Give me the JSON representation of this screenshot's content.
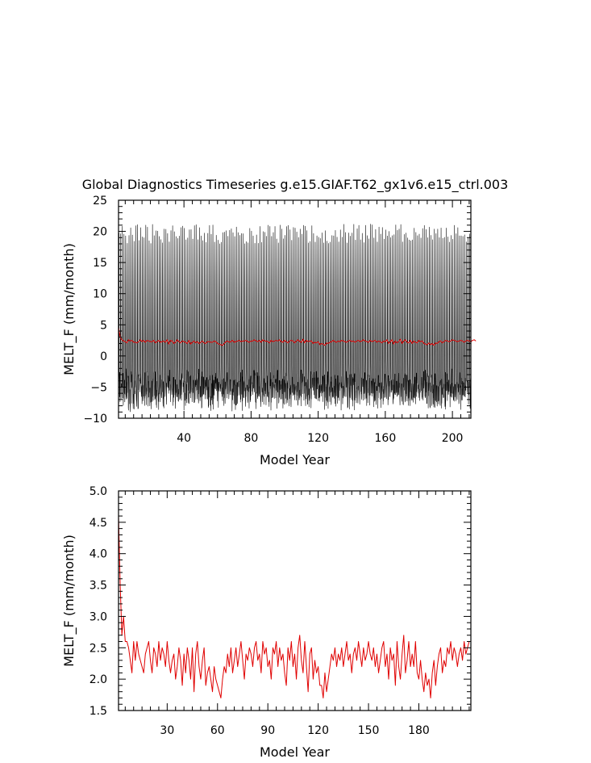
{
  "title": "Global Diagnostics Timeseries g.e15.GIAF.T62_gx1v6.e15_ctrl.003",
  "colors": {
    "monthly": "#000000",
    "annual": "#e00000",
    "axes": "#000000",
    "background": "#ffffff"
  },
  "chart_data": [
    {
      "type": "line",
      "xlabel": "Model Year",
      "ylabel": "MELT_F (mm/month)",
      "xlim": [
        1,
        211
      ],
      "ylim": [
        -10,
        25
      ],
      "x_ticks": [
        40,
        80,
        120,
        160,
        200
      ],
      "y_ticks": [
        -10,
        -5,
        0,
        5,
        10,
        15,
        20,
        25
      ],
      "y_tick_labels": [
        "−10",
        "−5",
        "0",
        "5",
        "10",
        "15",
        "20",
        "25"
      ],
      "x_tick_labels": [
        "40",
        "80",
        "120",
        "160",
        "200"
      ],
      "grid": false,
      "series": [
        {
          "kind": "monthly",
          "color": "#000000",
          "x_start": 1,
          "x_end": 211,
          "points_per_year": 12,
          "seasonal_max_approx": [
            18,
            22
          ],
          "seasonal_min_approx": [
            -7,
            -4
          ],
          "annual_mean_approx": 2.3
        },
        {
          "kind": "annual mean",
          "color": "#e00000",
          "x_start": 1,
          "values": [
            4.6,
            3.0,
            2.6,
            2.4,
            2.3,
            2.1,
            2.6,
            2.4,
            2.5,
            2.2,
            2.2,
            2.1,
            2.3,
            2.6,
            2.3,
            2.5,
            2.2,
            2.5,
            2.4,
            2.3,
            2.3,
            2.5,
            2.1,
            2.3,
            2.5,
            2.2,
            2.3,
            2.4,
            2.2,
            2.6,
            1.9,
            2.5,
            2.4,
            2.0,
            2.2,
            2.6,
            2.3,
            2.1,
            2.4,
            2.3,
            2.2,
            2.0,
            2.5,
            1.9,
            2.2,
            2.4,
            2.1,
            2.3,
            2.0,
            2.2,
            2.4,
            2.1,
            2.0,
            2.3,
            2.3,
            2.2,
            2.2,
            2.4,
            2.3,
            2.0,
            1.9,
            1.8,
            1.7,
            2.0,
            2.3,
            2.4,
            2.2,
            2.3,
            2.5,
            2.2,
            2.3,
            2.4,
            2.5,
            2.3,
            2.4,
            2.4,
            2.5,
            2.3,
            2.2,
            2.4,
            2.4,
            2.6,
            2.4,
            2.3,
            2.5,
            2.2,
            2.6,
            2.4,
            2.4,
            2.3,
            2.1,
            2.5,
            2.3,
            2.4,
            2.5,
            2.4,
            2.6,
            2.3,
            2.2,
            2.5,
            2.3,
            2.1,
            2.4,
            2.5,
            2.4,
            2.1,
            2.4,
            2.6,
            2.3,
            2.2,
            2.7,
            2.1,
            2.5,
            2.3,
            2.4,
            2.4,
            2.0,
            2.2,
            2.1,
            2.3,
            1.8,
            2.0,
            1.9,
            1.7,
            2.1,
            2.0,
            2.2,
            2.3,
            2.5,
            2.3,
            2.2,
            2.4,
            2.3,
            2.5,
            2.4,
            2.3,
            2.2,
            2.4,
            2.5,
            2.3,
            2.4,
            2.2,
            2.4,
            2.5,
            2.3,
            2.4,
            2.6,
            2.4,
            2.3,
            2.2,
            2.5,
            2.3,
            2.4,
            2.5,
            2.2,
            2.4,
            2.3,
            2.1,
            2.4,
            2.3,
            2.6,
            2.0,
            2.3,
            2.6,
            1.9,
            2.4,
            2.1,
            2.3,
            2.7,
            2.0,
            2.4,
            2.6,
            2.2,
            2.1,
            2.5,
            2.0,
            2.4,
            2.2,
            2.1,
            2.5,
            2.3,
            2.4,
            2.0,
            1.9,
            1.8,
            2.1,
            1.8,
            2.0,
            1.7,
            2.1,
            2.0,
            2.3,
            2.4,
            2.1,
            2.3,
            2.5,
            2.4,
            2.3,
            2.4,
            2.6,
            2.5,
            2.4,
            2.3,
            2.4,
            2.5,
            2.4,
            2.2,
            2.4,
            2.5,
            2.4,
            2.3,
            2.5,
            2.6,
            2.4
          ]
        }
      ]
    },
    {
      "type": "line",
      "xlabel": "Model Year",
      "ylabel": "MELT_F (mm/month)",
      "xlim": [
        1,
        211
      ],
      "ylim": [
        1.5,
        5.0
      ],
      "x_ticks": [
        30,
        60,
        90,
        120,
        150,
        180
      ],
      "y_ticks": [
        1.5,
        2.0,
        2.5,
        3.0,
        3.5,
        4.0,
        4.5,
        5.0
      ],
      "y_tick_labels": [
        "1.5",
        "2.0",
        "2.5",
        "3.0",
        "3.5",
        "4.0",
        "4.5",
        "5.0"
      ],
      "x_tick_labels": [
        "30",
        "60",
        "90",
        "120",
        "150",
        "180"
      ],
      "grid": false,
      "series": [
        {
          "kind": "annual mean",
          "color": "#e00000",
          "x_start": 1,
          "values": [
            4.6,
            3.5,
            2.7,
            3.0,
            2.6,
            2.6,
            2.5,
            2.3,
            2.1,
            2.6,
            2.3,
            2.6,
            2.4,
            2.3,
            2.2,
            2.1,
            2.4,
            2.5,
            2.6,
            2.3,
            2.1,
            2.5,
            2.4,
            2.2,
            2.6,
            2.3,
            2.5,
            2.4,
            2.2,
            2.6,
            2.3,
            2.1,
            2.3,
            2.4,
            2.0,
            2.2,
            2.5,
            2.3,
            1.9,
            2.4,
            2.1,
            2.5,
            2.3,
            2.0,
            2.5,
            1.8,
            2.4,
            2.6,
            2.2,
            2.0,
            2.3,
            2.5,
            1.9,
            2.1,
            2.2,
            2.0,
            1.8,
            2.2,
            2.0,
            1.9,
            1.8,
            1.7,
            2.0,
            2.2,
            2.1,
            2.4,
            2.2,
            2.5,
            2.1,
            2.3,
            2.5,
            2.2,
            2.4,
            2.6,
            2.3,
            2.0,
            2.4,
            2.3,
            2.5,
            2.4,
            2.2,
            2.5,
            2.6,
            2.3,
            2.4,
            2.1,
            2.6,
            2.4,
            2.5,
            2.2,
            2.3,
            2.0,
            2.5,
            2.4,
            2.6,
            2.2,
            2.5,
            2.3,
            2.4,
            2.1,
            1.9,
            2.5,
            2.3,
            2.6,
            2.2,
            2.4,
            2.0,
            2.5,
            2.7,
            2.3,
            2.1,
            2.6,
            2.2,
            1.8,
            2.4,
            2.5,
            2.0,
            2.3,
            2.1,
            2.2,
            1.9,
            1.9,
            1.7,
            2.1,
            1.8,
            2.0,
            2.2,
            2.4,
            2.3,
            2.5,
            2.2,
            2.4,
            2.3,
            2.5,
            2.2,
            2.4,
            2.6,
            2.3,
            2.4,
            2.1,
            2.4,
            2.5,
            2.3,
            2.6,
            2.4,
            2.2,
            2.5,
            2.3,
            2.4,
            2.6,
            2.4,
            2.3,
            2.5,
            2.2,
            2.4,
            2.1,
            2.3,
            2.5,
            2.6,
            2.2,
            2.4,
            2.0,
            2.5,
            2.3,
            2.4,
            1.9,
            2.6,
            2.2,
            2.0,
            2.4,
            2.7,
            2.1,
            2.3,
            2.6,
            2.2,
            2.4,
            2.2,
            2.6,
            2.1,
            2.0,
            2.3,
            2.0,
            1.8,
            2.1,
            1.9,
            2.0,
            1.7,
            2.1,
            2.3,
            1.9,
            2.2,
            2.4,
            2.5,
            2.1,
            2.3,
            2.2,
            2.5,
            2.4,
            2.6,
            2.3,
            2.5,
            2.4,
            2.2,
            2.4,
            2.5,
            2.3,
            2.6,
            2.4,
            2.5,
            2.6
          ]
        }
      ]
    }
  ]
}
